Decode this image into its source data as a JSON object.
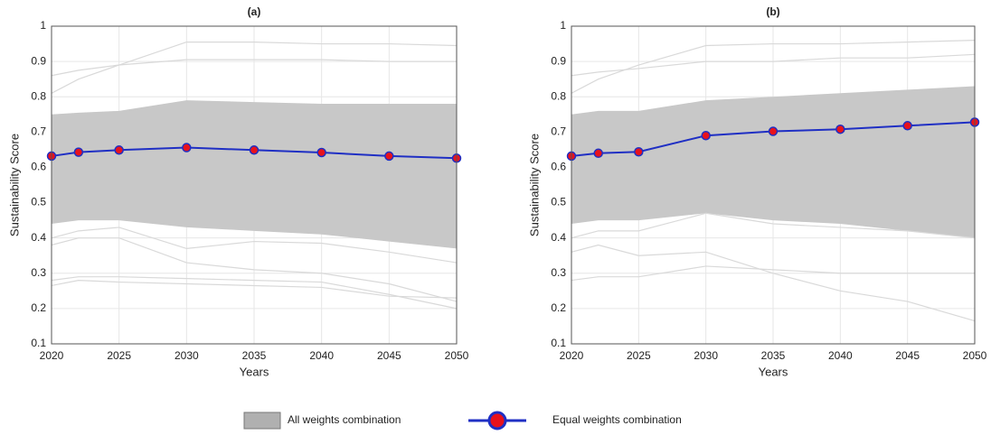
{
  "chart_data": [
    {
      "type": "line",
      "title": "(a)",
      "x_label": "Years",
      "y_label": "Sustainability Score",
      "x": [
        2020,
        2022,
        2025,
        2030,
        2035,
        2040,
        2045,
        2050
      ],
      "xlim": [
        2020,
        2050
      ],
      "xticks": [
        2020,
        2025,
        2030,
        2035,
        2040,
        2045,
        2050
      ],
      "ylim": [
        0.1,
        1
      ],
      "yticks": [
        0.1,
        0.2,
        0.3,
        0.4,
        0.5,
        0.6,
        0.7,
        0.8,
        0.9,
        1
      ],
      "grid": true,
      "band": {
        "color": "#c8c8c8",
        "upper": [
          0.75,
          0.755,
          0.76,
          0.79,
          0.785,
          0.78,
          0.78,
          0.78
        ],
        "lower": [
          0.44,
          0.45,
          0.45,
          0.43,
          0.42,
          0.41,
          0.39,
          0.37
        ]
      },
      "gray_lines": {
        "color": "#d9d9d9",
        "lines": [
          [
            0.81,
            0.85,
            0.89,
            0.955,
            0.955,
            0.95,
            0.95,
            0.945
          ],
          [
            0.86,
            0.875,
            0.89,
            0.905,
            0.905,
            0.905,
            0.9,
            0.9
          ],
          [
            0.28,
            0.29,
            0.29,
            0.285,
            0.28,
            0.275,
            0.24,
            0.2
          ],
          [
            0.265,
            0.28,
            0.275,
            0.27,
            0.265,
            0.26,
            0.235,
            0.23
          ],
          [
            0.38,
            0.4,
            0.4,
            0.33,
            0.31,
            0.3,
            0.27,
            0.22
          ],
          [
            0.4,
            0.42,
            0.43,
            0.37,
            0.39,
            0.385,
            0.36,
            0.33
          ]
        ]
      },
      "series": [
        {
          "color": "#1f2fc4",
          "marker_color": "#e8121c",
          "values": [
            0.632,
            0.643,
            0.649,
            0.656,
            0.649,
            0.642,
            0.632,
            0.626
          ]
        }
      ]
    },
    {
      "type": "line",
      "title": "(b)",
      "x_label": "Years",
      "y_label": "Sustainability Score",
      "x": [
        2020,
        2022,
        2025,
        2030,
        2035,
        2040,
        2045,
        2050
      ],
      "xlim": [
        2020,
        2050
      ],
      "xticks": [
        2020,
        2025,
        2030,
        2035,
        2040,
        2045,
        2050
      ],
      "ylim": [
        0.1,
        1
      ],
      "yticks": [
        0.1,
        0.2,
        0.3,
        0.4,
        0.5,
        0.6,
        0.7,
        0.8,
        0.9,
        1
      ],
      "grid": true,
      "band": {
        "color": "#c8c8c8",
        "upper": [
          0.75,
          0.76,
          0.76,
          0.79,
          0.8,
          0.81,
          0.82,
          0.83
        ],
        "lower": [
          0.44,
          0.45,
          0.45,
          0.47,
          0.45,
          0.44,
          0.42,
          0.4
        ]
      },
      "gray_lines": {
        "color": "#d9d9d9",
        "lines": [
          [
            0.81,
            0.85,
            0.89,
            0.945,
            0.95,
            0.95,
            0.955,
            0.96
          ],
          [
            0.86,
            0.87,
            0.88,
            0.9,
            0.9,
            0.91,
            0.91,
            0.92
          ],
          [
            0.28,
            0.29,
            0.29,
            0.32,
            0.31,
            0.3,
            0.3,
            0.3
          ],
          [
            0.36,
            0.38,
            0.35,
            0.36,
            0.3,
            0.25,
            0.22,
            0.165
          ],
          [
            0.4,
            0.42,
            0.42,
            0.47,
            0.44,
            0.43,
            0.42,
            0.4
          ]
        ]
      },
      "series": [
        {
          "color": "#1f2fc4",
          "marker_color": "#e8121c",
          "values": [
            0.632,
            0.64,
            0.644,
            0.69,
            0.702,
            0.708,
            0.718,
            0.728
          ]
        }
      ]
    }
  ],
  "legend": [
    {
      "name": "All weights combination",
      "color": "#b0b0b0"
    },
    {
      "name": "Equal weights combination",
      "color": "#1f2fc4",
      "marker_color": "#e8121c"
    }
  ]
}
